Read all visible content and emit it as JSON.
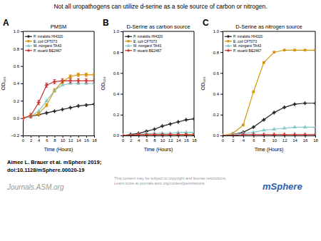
{
  "title": "Not all uropathogens can utilize d-serine as a sole source of carbon or nitrogen.",
  "annotations": [
    "Aimee L. Brauer et al. mSphere 2019;",
    "doi:10.1128/mSphere.00020-19",
    "Journals.ASM.org",
    "This content may be subject to copyright and license restrictions.\nLearn more at journals.asm.org/content/permissions",
    "mSphere"
  ],
  "chart_data": [
    {
      "type": "line",
      "title": "PMSM",
      "annotations": [
        "A"
      ],
      "xlabel": "Time (Hours)",
      "ylabel": "OD₆₀₀",
      "x": [
        0,
        2,
        4,
        6,
        8,
        10,
        12,
        14,
        16,
        18
      ],
      "xlim": [
        0,
        18
      ],
      "xticks": [
        0,
        2,
        4,
        6,
        8,
        10,
        12,
        14,
        16,
        18
      ],
      "ylim": [
        -0.2,
        1.0
      ],
      "yticks": [
        {
          "value": -0.2,
          "label": "−0.2"
        },
        {
          "value": 0,
          "label": "0.0"
        },
        0.2,
        0.4,
        0.6,
        0.8,
        {
          "value": 1.0,
          "label": "1.0"
        }
      ],
      "grid": false,
      "legend": "upper left",
      "series": [
        {
          "name": "P. mirabilis HI4320",
          "color": "#222222",
          "marker": "plus",
          "values": [
            0.0,
            0.02,
            0.04,
            0.06,
            0.08,
            0.1,
            0.12,
            0.14,
            0.15,
            0.16
          ]
        },
        {
          "name": "E. coli CFT073",
          "color": "#d4950a",
          "marker": "square",
          "values": [
            0.0,
            0.02,
            0.05,
            0.15,
            0.32,
            0.42,
            0.48,
            0.5,
            0.5,
            0.5
          ],
          "errors": [
            0.02,
            0.02,
            0.02,
            0.02,
            0.02,
            0.02,
            0.02,
            0.02,
            0.02,
            0.02
          ]
        },
        {
          "name": "M. morganii TA43",
          "color": "#88c8c8",
          "marker": "triangle",
          "values": [
            0.0,
            0.02,
            0.08,
            0.2,
            0.32,
            0.38,
            0.4,
            0.4,
            0.4,
            0.4
          ]
        },
        {
          "name": "P. stuartii BE2467",
          "color": "#c83030",
          "marker": "plus",
          "values": [
            0.0,
            0.03,
            0.18,
            0.38,
            0.42,
            0.43,
            0.43,
            0.43,
            0.43,
            0.43
          ],
          "errors": [
            0.025,
            0.025,
            0.025,
            0.025,
            0.025,
            0.025,
            0.025,
            0.025,
            0.025,
            0.025
          ]
        }
      ]
    },
    {
      "type": "line",
      "title": "D-Serine as carbon source",
      "annotations": [
        "B"
      ],
      "xlabel": "Time (Hours)",
      "ylabel": "OD₆₀₀",
      "x": [
        0,
        2,
        4,
        6,
        8,
        10,
        12,
        14,
        16,
        18
      ],
      "xlim": [
        0,
        18
      ],
      "xticks": [
        0,
        2,
        4,
        6,
        8,
        10,
        12,
        14,
        16,
        18
      ],
      "ylim": [
        0.0,
        1.0
      ],
      "yticks": [
        {
          "value": 0,
          "label": "0.0"
        },
        0.2,
        0.4,
        0.6,
        0.8,
        {
          "value": 1.0,
          "label": "1.0"
        }
      ],
      "grid": false,
      "legend": "upper left",
      "series": [
        {
          "name": "P. mirabilis HI4320",
          "color": "#222222",
          "marker": "plus",
          "values": [
            0.0,
            0.01,
            0.02,
            0.04,
            0.06,
            0.09,
            0.11,
            0.13,
            0.15,
            0.16
          ]
        },
        {
          "name": "E. coli CFT073",
          "color": "#d4950a",
          "marker": "square",
          "values": [
            0.0,
            0.0,
            0.01,
            0.01,
            0.01,
            0.01,
            0.01,
            0.01,
            0.01,
            0.01
          ]
        },
        {
          "name": "M. morganii TA43",
          "color": "#88c8c8",
          "marker": "triangle",
          "values": [
            0.0,
            0.0,
            0.01,
            0.02,
            0.02,
            0.02,
            0.02,
            0.03,
            0.03,
            0.03
          ]
        },
        {
          "name": "P. stuartii BE2467",
          "color": "#c83030",
          "marker": "plus",
          "values": [
            0.0,
            0.0,
            0.01,
            0.01,
            0.01,
            0.01,
            0.01,
            0.01,
            0.01,
            0.01
          ]
        }
      ]
    },
    {
      "type": "line",
      "title": "D-Serine as nitrogen source",
      "annotations": [
        "C"
      ],
      "xlabel": "Time (Hours)",
      "ylabel": "OD₆₀₀",
      "x": [
        0,
        2,
        4,
        6,
        8,
        10,
        12,
        14,
        16,
        18
      ],
      "xlim": [
        0,
        18
      ],
      "xticks": [
        0,
        2,
        4,
        6,
        8,
        10,
        12,
        14,
        16,
        18
      ],
      "ylim": [
        0.0,
        1.0
      ],
      "yticks": [
        {
          "value": 0,
          "label": "0.0"
        },
        0.2,
        0.4,
        0.6,
        0.8,
        {
          "value": 1.0,
          "label": "1.0"
        }
      ],
      "grid": false,
      "legend": "upper left",
      "series": [
        {
          "name": "P. mirabilis HI4320",
          "color": "#222222",
          "marker": "plus",
          "values": [
            0.0,
            0.01,
            0.03,
            0.08,
            0.15,
            0.22,
            0.27,
            0.3,
            0.31,
            0.31
          ]
        },
        {
          "name": "E. coli CFT073",
          "color": "#d4950a",
          "marker": "square",
          "values": [
            0.0,
            0.02,
            0.1,
            0.42,
            0.7,
            0.8,
            0.82,
            0.82,
            0.82,
            0.82
          ]
        },
        {
          "name": "M. morganii TA43",
          "color": "#88c8c8",
          "marker": "triangle",
          "values": [
            0.0,
            0.01,
            0.02,
            0.03,
            0.05,
            0.06,
            0.07,
            0.08,
            0.08,
            0.08
          ]
        },
        {
          "name": "P. stuartii BE2467",
          "color": "#c83030",
          "marker": "plus",
          "values": [
            0.0,
            0.0,
            0.01,
            0.01,
            0.01,
            0.01,
            0.01,
            0.01,
            0.01,
            0.01
          ]
        }
      ]
    }
  ]
}
